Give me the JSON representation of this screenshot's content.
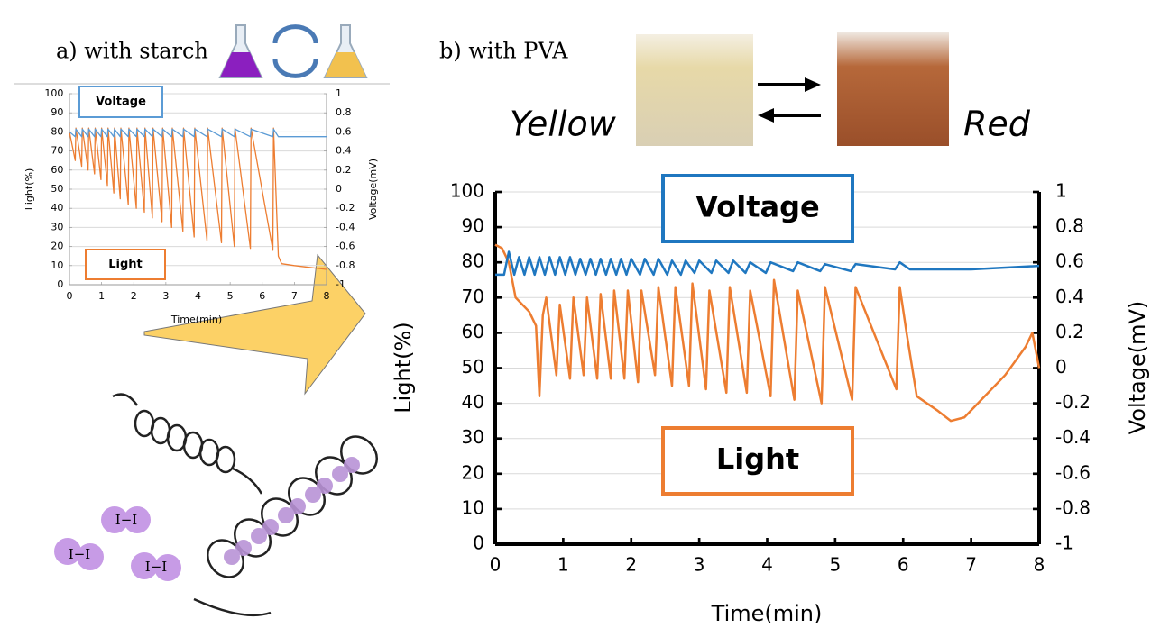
{
  "panels": {
    "a": "a) with starch",
    "b": "b) with PVA"
  },
  "states": [
    "Yellow",
    "Red"
  ],
  "molecules": [
    "I−I",
    "I−I",
    "I−I"
  ],
  "chart_data": [
    {
      "type": "line",
      "xlabel": "Time(min)",
      "ylabel": "Light(%)",
      "y2label": "Voltage(mV)",
      "xlim": [
        0,
        8
      ],
      "xticks": [
        0,
        1,
        2,
        3,
        4,
        5,
        6,
        7,
        8
      ],
      "ylim": [
        0,
        100
      ],
      "yticks": [
        0,
        10,
        20,
        30,
        40,
        50,
        60,
        70,
        80,
        90,
        100
      ],
      "y2lim": [
        -1,
        1
      ],
      "y2ticks": [
        -1,
        -0.8,
        -0.6,
        -0.4,
        -0.2,
        0,
        0.2,
        0.4,
        0.6,
        0.8,
        1
      ],
      "grid": true,
      "series": [
        {
          "name": "Light",
          "color": "#ed7d31",
          "x": [
            0,
            0.18,
            0.2,
            0.38,
            0.4,
            0.58,
            0.6,
            0.78,
            0.8,
            0.98,
            1.0,
            1.18,
            1.2,
            1.38,
            1.4,
            1.58,
            1.6,
            1.83,
            1.85,
            2.08,
            2.1,
            2.33,
            2.35,
            2.58,
            2.6,
            2.88,
            2.9,
            3.18,
            3.2,
            3.53,
            3.55,
            3.88,
            3.9,
            4.28,
            4.3,
            4.73,
            4.75,
            5.13,
            5.15,
            5.63,
            5.65,
            6.33,
            6.35,
            6.5,
            6.6,
            7.0,
            7.5,
            8.0
          ],
          "values": [
            80,
            65,
            82,
            62,
            82,
            60,
            82,
            58,
            82,
            55,
            82,
            52,
            82,
            48,
            82,
            45,
            82,
            42,
            82,
            40,
            82,
            38,
            82,
            35,
            82,
            33,
            82,
            30,
            82,
            28,
            82,
            25,
            82,
            23,
            82,
            22,
            82,
            20,
            82,
            19,
            82,
            18,
            82,
            15,
            11,
            10,
            9,
            8
          ]
        },
        {
          "name": "Voltage",
          "color": "#5b9bd5",
          "axis": "y2",
          "x": [
            0,
            0.18,
            0.2,
            0.38,
            0.4,
            0.58,
            0.6,
            0.78,
            0.8,
            0.98,
            1.0,
            1.18,
            1.2,
            1.38,
            1.4,
            1.58,
            1.6,
            1.83,
            1.85,
            2.08,
            2.1,
            2.33,
            2.35,
            2.58,
            2.6,
            2.88,
            2.9,
            3.18,
            3.2,
            3.53,
            3.55,
            3.88,
            3.9,
            4.28,
            4.3,
            4.73,
            4.75,
            5.13,
            5.15,
            5.63,
            5.65,
            6.33,
            6.35,
            6.5,
            8.0
          ],
          "values": [
            0.6,
            0.55,
            0.63,
            0.55,
            0.63,
            0.55,
            0.63,
            0.55,
            0.63,
            0.55,
            0.63,
            0.55,
            0.63,
            0.55,
            0.63,
            0.55,
            0.63,
            0.55,
            0.63,
            0.55,
            0.63,
            0.55,
            0.63,
            0.55,
            0.63,
            0.55,
            0.63,
            0.55,
            0.63,
            0.55,
            0.63,
            0.55,
            0.63,
            0.55,
            0.63,
            0.55,
            0.63,
            0.55,
            0.63,
            0.55,
            0.63,
            0.55,
            0.63,
            0.55,
            0.55
          ]
        }
      ]
    },
    {
      "type": "line",
      "xlabel": "Time(min)",
      "ylabel": "Light(%)",
      "y2label": "Voltage(mV)",
      "xlim": [
        0,
        8
      ],
      "xticks": [
        0,
        1,
        2,
        3,
        4,
        5,
        6,
        7,
        8
      ],
      "ylim": [
        0,
        100
      ],
      "yticks": [
        0,
        10,
        20,
        30,
        40,
        50,
        60,
        70,
        80,
        90,
        100
      ],
      "y2lim": [
        -1,
        1
      ],
      "y2ticks": [
        -1,
        -0.8,
        -0.6,
        -0.4,
        -0.2,
        0,
        0.2,
        0.4,
        0.6,
        0.8,
        1
      ],
      "grid": true,
      "series": [
        {
          "name": "Light",
          "color": "#ed7d31",
          "x": [
            0,
            0.1,
            0.2,
            0.3,
            0.4,
            0.5,
            0.6,
            0.65,
            0.7,
            0.75,
            0.9,
            0.95,
            1.1,
            1.15,
            1.3,
            1.35,
            1.5,
            1.55,
            1.7,
            1.75,
            1.9,
            1.95,
            2.1,
            2.15,
            2.35,
            2.4,
            2.6,
            2.65,
            2.85,
            2.9,
            3.1,
            3.15,
            3.4,
            3.45,
            3.7,
            3.75,
            4.05,
            4.1,
            4.4,
            4.45,
            4.8,
            4.85,
            5.25,
            5.3,
            5.9,
            5.95,
            6.05,
            6.2,
            6.5,
            6.7,
            6.9,
            7.2,
            7.5,
            7.8,
            7.9,
            8.0
          ],
          "values": [
            85,
            84,
            80,
            70,
            68,
            66,
            62,
            42,
            65,
            70,
            48,
            68,
            47,
            70,
            48,
            70,
            47,
            71,
            47,
            72,
            47,
            72,
            46,
            72,
            48,
            73,
            45,
            73,
            45,
            74,
            44,
            72,
            43,
            73,
            43,
            72,
            42,
            75,
            41,
            72,
            40,
            73,
            41,
            73,
            44,
            73,
            60,
            42,
            38,
            35,
            36,
            42,
            48,
            56,
            60,
            50
          ]
        },
        {
          "name": "Voltage",
          "color": "#1f77c0",
          "axis": "y2",
          "x": [
            0,
            0.13,
            0.2,
            0.28,
            0.35,
            0.43,
            0.5,
            0.58,
            0.65,
            0.73,
            0.8,
            0.88,
            0.95,
            1.03,
            1.1,
            1.18,
            1.25,
            1.33,
            1.4,
            1.48,
            1.55,
            1.63,
            1.7,
            1.78,
            1.85,
            1.93,
            2.0,
            2.13,
            2.2,
            2.33,
            2.4,
            2.53,
            2.6,
            2.73,
            2.8,
            2.93,
            3.0,
            3.18,
            3.25,
            3.43,
            3.5,
            3.68,
            3.75,
            3.98,
            4.05,
            4.38,
            4.45,
            4.78,
            4.85,
            5.23,
            5.3,
            5.88,
            5.95,
            6.1,
            7.0,
            8.0
          ],
          "values": [
            0.53,
            0.53,
            0.66,
            0.53,
            0.63,
            0.53,
            0.63,
            0.53,
            0.63,
            0.53,
            0.63,
            0.53,
            0.63,
            0.53,
            0.63,
            0.53,
            0.62,
            0.53,
            0.62,
            0.53,
            0.62,
            0.53,
            0.62,
            0.53,
            0.62,
            0.53,
            0.62,
            0.53,
            0.62,
            0.53,
            0.62,
            0.53,
            0.61,
            0.53,
            0.61,
            0.54,
            0.61,
            0.54,
            0.61,
            0.54,
            0.61,
            0.54,
            0.6,
            0.54,
            0.6,
            0.55,
            0.6,
            0.55,
            0.59,
            0.55,
            0.59,
            0.56,
            0.6,
            0.56,
            0.56,
            0.58
          ]
        }
      ]
    }
  ]
}
